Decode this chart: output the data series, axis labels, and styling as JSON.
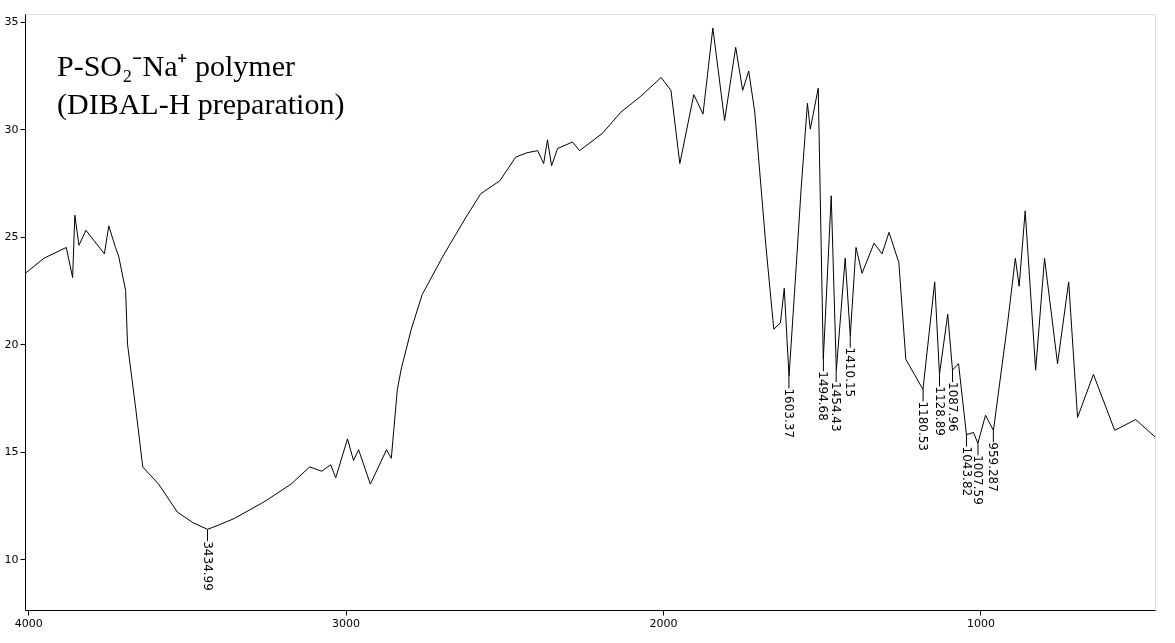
{
  "chart_data": {
    "type": "line",
    "title": "P-SO₂⁻Na⁺ polymer",
    "subtitle": "(DIBAL-H preparation)",
    "xlim": [
      4010,
      450
    ],
    "ylim": [
      7.65,
      35.35
    ],
    "xticks": [
      4000,
      3000,
      2000,
      1000
    ],
    "yticks": [
      10,
      15,
      20,
      25,
      30,
      35
    ],
    "grid": false,
    "marker": "none",
    "series": [
      {
        "color": "#000000",
        "x": [
          4009,
          3950,
          3880,
          3860,
          3853,
          3840,
          3818,
          3760,
          3746,
          3725,
          3715,
          3693,
          3687,
          3661,
          3639,
          3589,
          3530,
          3480,
          3435,
          3400,
          3351,
          3254,
          3172,
          3113,
          3075,
          3047,
          3031,
          2994,
          2975,
          2959,
          2922,
          2871,
          2856,
          2837,
          2824,
          2793,
          2759,
          2693,
          2621,
          2574,
          2514,
          2464,
          2429,
          2395,
          2376,
          2364,
          2351,
          2332,
          2285,
          2263,
          2191,
          2132,
          2072,
          2006,
          1975,
          1947,
          1903,
          1874,
          1843,
          1806,
          1771,
          1749,
          1730,
          1711,
          1676,
          1651,
          1630,
          1618,
          1603,
          1580,
          1565,
          1545,
          1536,
          1511,
          1495,
          1470,
          1454,
          1426,
          1410,
          1392,
          1373,
          1335,
          1310,
          1288,
          1257,
          1235,
          1181,
          1144,
          1129,
          1103,
          1088,
          1069,
          1044,
          1022,
          1008,
          984,
          959,
          915,
          890,
          878,
          859,
          826,
          798,
          757,
          722,
          694,
          644,
          577,
          511,
          450
        ],
        "values": [
          23.3,
          24.0,
          24.5,
          23.1,
          26.0,
          24.6,
          25.3,
          24.2,
          25.5,
          24.5,
          24.1,
          22.5,
          20.0,
          17.0,
          14.3,
          13.5,
          12.2,
          11.7,
          11.4,
          11.6,
          11.9,
          12.7,
          13.5,
          14.3,
          14.1,
          14.4,
          13.8,
          15.6,
          14.6,
          15.1,
          13.5,
          15.1,
          14.7,
          17.9,
          18.9,
          20.7,
          22.3,
          24.1,
          25.9,
          27.0,
          27.6,
          28.7,
          28.9,
          29.0,
          28.4,
          29.5,
          28.3,
          29.1,
          29.4,
          29.0,
          29.8,
          30.8,
          31.5,
          32.4,
          31.8,
          28.4,
          31.6,
          30.7,
          34.7,
          30.4,
          33.8,
          31.8,
          32.7,
          30.8,
          24.6,
          20.7,
          21.0,
          22.6,
          18.5,
          23.7,
          27.2,
          31.2,
          30.0,
          31.9,
          19.3,
          26.9,
          18.8,
          24.0,
          20.4,
          24.5,
          23.3,
          24.7,
          24.2,
          25.2,
          23.8,
          19.3,
          17.9,
          22.9,
          18.6,
          21.4,
          18.8,
          19.1,
          15.8,
          15.9,
          15.4,
          16.7,
          16.0,
          20.9,
          24.0,
          22.7,
          26.2,
          18.8,
          24.0,
          19.1,
          22.9,
          16.6,
          18.6,
          16.0,
          16.5,
          15.7
        ]
      }
    ],
    "annotations": [
      {
        "text": "3434.99",
        "x": 3434.99,
        "y": 11.4
      },
      {
        "text": "1603.37",
        "x": 1603.37,
        "y": 18.5
      },
      {
        "text": "1494.68",
        "x": 1494.68,
        "y": 19.3
      },
      {
        "text": "1454.43",
        "x": 1454.43,
        "y": 18.8
      },
      {
        "text": "1410.15",
        "x": 1410.15,
        "y": 20.4
      },
      {
        "text": "1180.53",
        "x": 1180.53,
        "y": 17.9
      },
      {
        "text": "1128.89",
        "x": 1128.89,
        "y": 18.6
      },
      {
        "text": "1087.96",
        "x": 1087.96,
        "y": 18.8
      },
      {
        "text": "1043.82",
        "x": 1043.82,
        "y": 15.8
      },
      {
        "text": "1007.59",
        "x": 1007.59,
        "y": 15.4
      },
      {
        "text": "959.287",
        "x": 959.287,
        "y": 16.0
      }
    ]
  }
}
